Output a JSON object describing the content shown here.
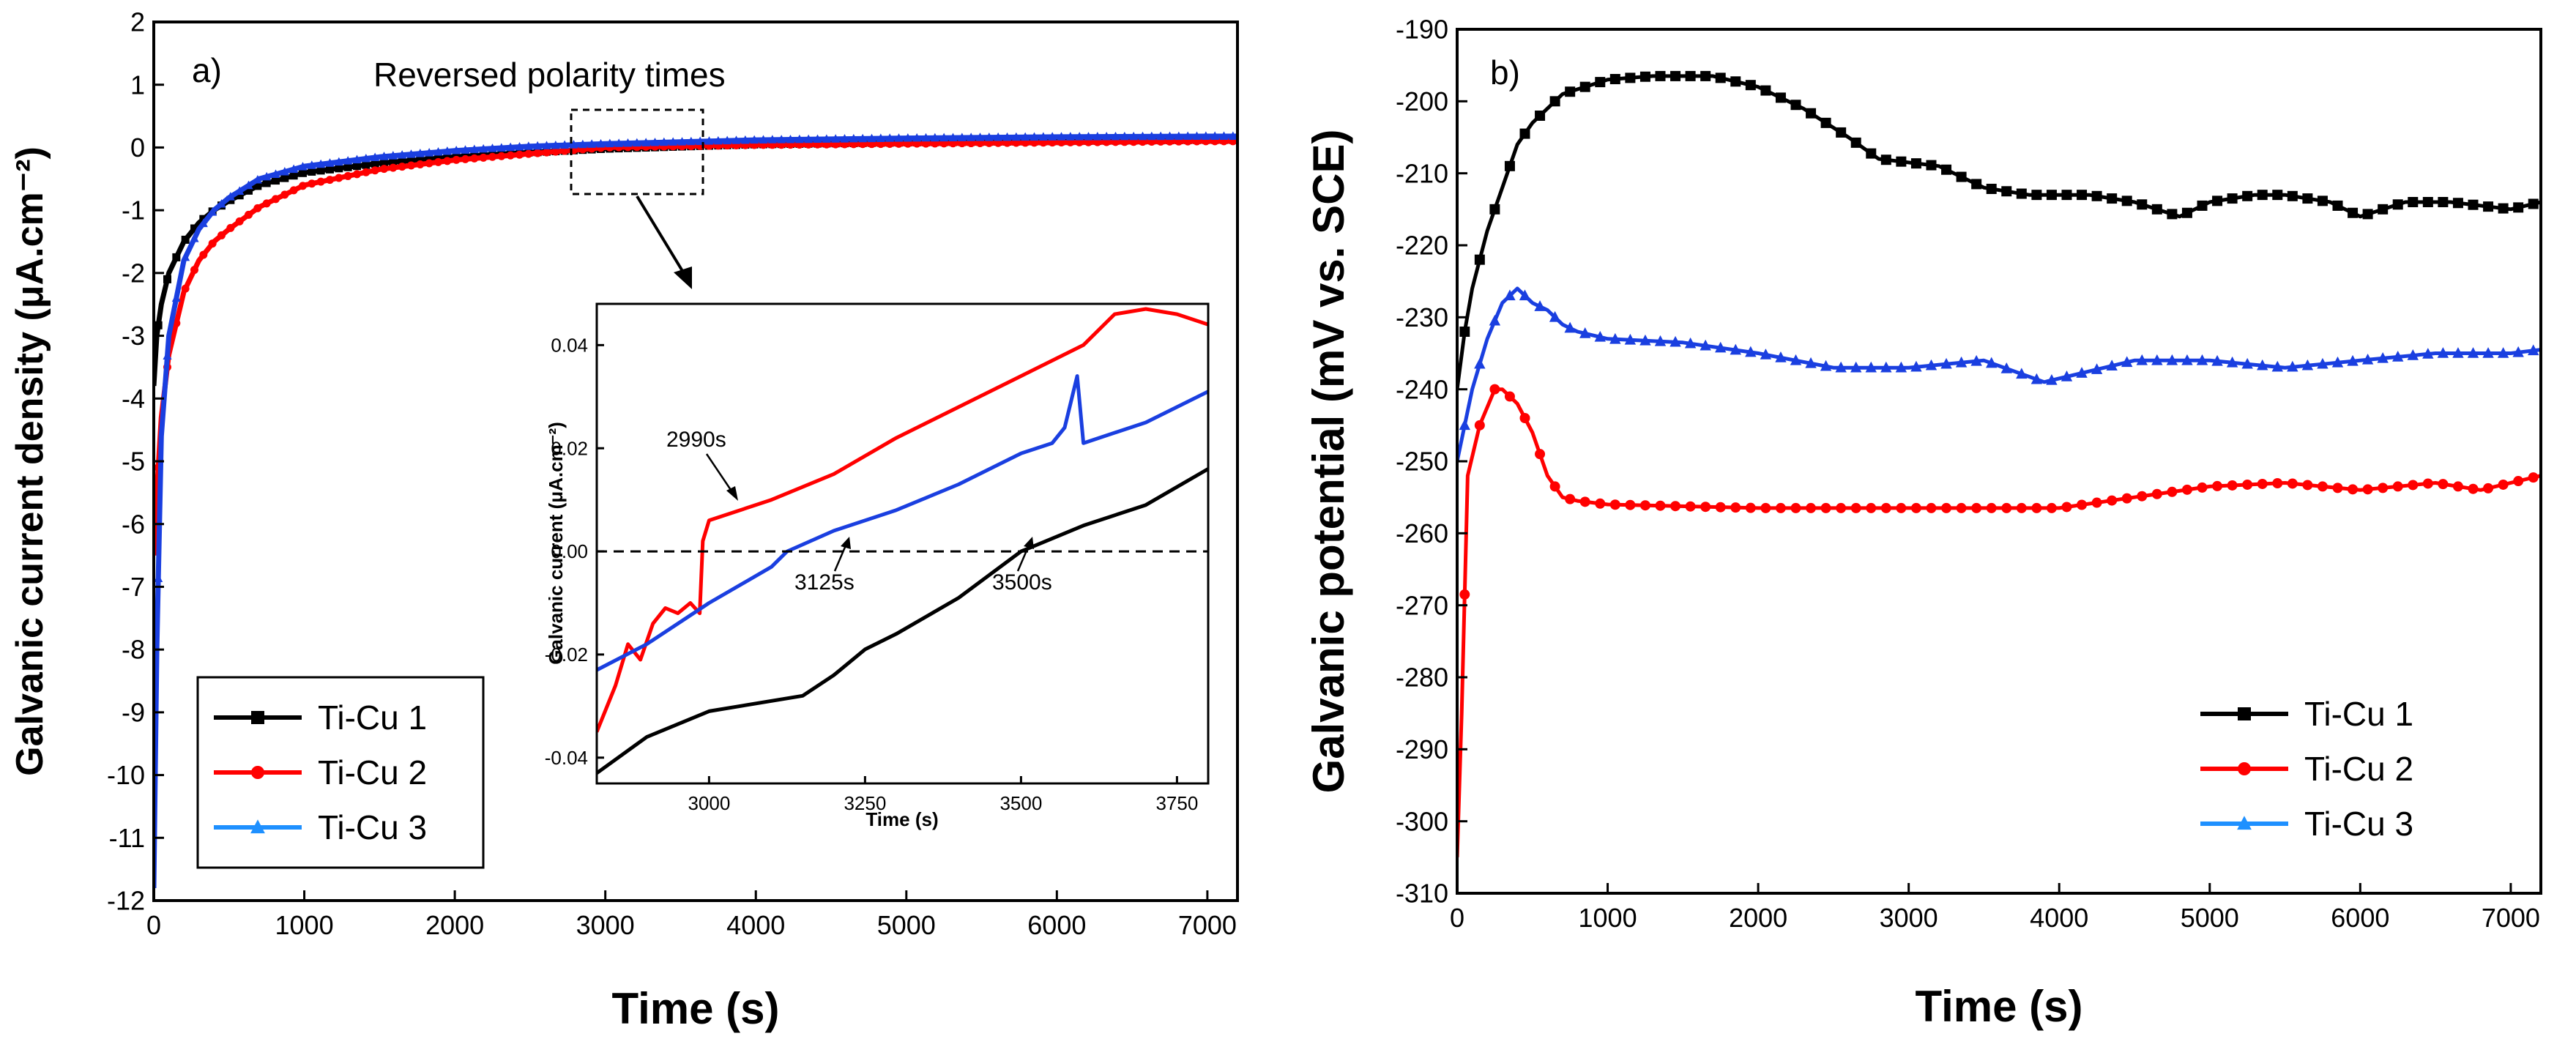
{
  "colors": {
    "ti_cu_1": "#000000",
    "ti_cu_2": "#ff0000",
    "ti_cu_3": "#1a3fe0",
    "ti_cu_3_legend": "#1e90ff",
    "axis": "#000000",
    "zero_line": "#000000"
  },
  "chart_data": [
    {
      "id": "a",
      "type": "line",
      "panel_label": "a)",
      "annotation": "Reversed polarity times",
      "xlabel": "Time (s)",
      "ylabel": "Galvanic current density (μA.cm⁻²)",
      "xlim": [
        0,
        7200
      ],
      "ylim": [
        -12,
        2
      ],
      "xticks": [
        "0",
        "1000",
        "2000",
        "3000",
        "4000",
        "5000",
        "6000",
        "7000"
      ],
      "yticks": [
        "2",
        "1",
        "0",
        "-1",
        "-2",
        "-3",
        "-4",
        "-5",
        "-6",
        "-7",
        "-8",
        "-9",
        "-10",
        "-11",
        "-12"
      ],
      "legend_position": "bottom-left",
      "legend": [
        "Ti-Cu 1",
        "Ti-Cu 2",
        "Ti-Cu 3"
      ],
      "series": [
        {
          "name": "Ti-Cu 1",
          "marker": "square",
          "x": [
            0,
            20,
            50,
            100,
            200,
            300,
            400,
            500,
            700,
            1000,
            1500,
            2000,
            2500,
            3000,
            4000,
            5000,
            6000,
            7000,
            7200
          ],
          "y": [
            -3.8,
            -3.0,
            -2.5,
            -2.0,
            -1.5,
            -1.2,
            -1.0,
            -0.85,
            -0.6,
            -0.4,
            -0.25,
            -0.15,
            -0.08,
            -0.02,
            0.05,
            0.08,
            0.1,
            0.12,
            0.12
          ]
        },
        {
          "name": "Ti-Cu 2",
          "marker": "circle",
          "x": [
            0,
            20,
            50,
            100,
            200,
            300,
            400,
            500,
            700,
            1000,
            1500,
            2000,
            2500,
            3000,
            4000,
            5000,
            6000,
            7000,
            7200
          ],
          "y": [
            -6.5,
            -5.5,
            -4.3,
            -3.3,
            -2.3,
            -1.8,
            -1.5,
            -1.3,
            -0.95,
            -0.6,
            -0.35,
            -0.2,
            -0.1,
            0.0,
            0.04,
            0.06,
            0.08,
            0.1,
            0.1
          ]
        },
        {
          "name": "Ti-Cu 3",
          "marker": "triangle",
          "x": [
            0,
            20,
            50,
            100,
            200,
            300,
            400,
            500,
            700,
            1000,
            1500,
            2000,
            2500,
            3000,
            4000,
            5000,
            6000,
            7000,
            7200
          ],
          "y": [
            -11.8,
            -8.0,
            -4.6,
            -3.0,
            -1.8,
            -1.3,
            -1.0,
            -0.8,
            -0.5,
            -0.3,
            -0.15,
            -0.05,
            0.02,
            0.06,
            0.12,
            0.15,
            0.17,
            0.18,
            0.18
          ]
        }
      ]
    },
    {
      "id": "a-inset",
      "type": "line",
      "xlabel": "Time (s)",
      "ylabel": "Galvanic current (μA.cm⁻²)",
      "xlim": [
        2820,
        3800
      ],
      "ylim": [
        -0.045,
        0.048
      ],
      "xticks": [
        "3000",
        "3250",
        "3500",
        "3750"
      ],
      "yticks": [
        "0.04",
        "0.02",
        "0.00",
        "-0.02",
        "-0.04"
      ],
      "annotations": [
        "2990s",
        "3125s",
        "3500s"
      ],
      "series": [
        {
          "name": "Ti-Cu 1",
          "x": [
            2820,
            2900,
            3000,
            3100,
            3150,
            3200,
            3250,
            3300,
            3400,
            3500,
            3600,
            3700,
            3800
          ],
          "y": [
            -0.043,
            -0.036,
            -0.031,
            -0.029,
            -0.028,
            -0.024,
            -0.019,
            -0.016,
            -0.009,
            0.0,
            0.005,
            0.009,
            0.016
          ]
        },
        {
          "name": "Ti-Cu 2",
          "x": [
            2820,
            2850,
            2870,
            2890,
            2910,
            2930,
            2950,
            2970,
            2985,
            2990,
            3000,
            3100,
            3200,
            3300,
            3400,
            3500,
            3600,
            3650,
            3700,
            3750,
            3800
          ],
          "y": [
            -0.035,
            -0.026,
            -0.018,
            -0.021,
            -0.014,
            -0.011,
            -0.012,
            -0.01,
            -0.012,
            0.002,
            0.006,
            0.01,
            0.015,
            0.022,
            0.028,
            0.034,
            0.04,
            0.046,
            0.047,
            0.046,
            0.044
          ]
        },
        {
          "name": "Ti-Cu 3",
          "x": [
            2820,
            2900,
            3000,
            3100,
            3125,
            3200,
            3300,
            3400,
            3500,
            3550,
            3570,
            3590,
            3600,
            3700,
            3800
          ],
          "y": [
            -0.023,
            -0.018,
            -0.01,
            -0.003,
            0.0,
            0.004,
            0.008,
            0.013,
            0.019,
            0.021,
            0.024,
            0.034,
            0.021,
            0.025,
            0.031
          ]
        }
      ]
    },
    {
      "id": "b",
      "type": "line",
      "panel_label": "b)",
      "xlabel": "Time (s)",
      "ylabel": "Galvanic potential (mV vs. SCE)",
      "xlim": [
        0,
        7200
      ],
      "ylim": [
        -310,
        -190
      ],
      "xticks": [
        "0",
        "1000",
        "2000",
        "3000",
        "4000",
        "5000",
        "6000",
        "7000"
      ],
      "yticks": [
        "-190",
        "-200",
        "-210",
        "-220",
        "-230",
        "-240",
        "-250",
        "-260",
        "-270",
        "-280",
        "-290",
        "-300",
        "-310"
      ],
      "legend_position": "bottom-right",
      "legend": [
        "Ti-Cu 1",
        "Ti-Cu 2",
        "Ti-Cu 3"
      ],
      "series": [
        {
          "name": "Ti-Cu 1",
          "marker": "square",
          "x": [
            0,
            50,
            100,
            200,
            300,
            400,
            500,
            700,
            1000,
            1300,
            1700,
            2000,
            2300,
            2600,
            2800,
            3200,
            3500,
            3800,
            4200,
            4500,
            4800,
            5000,
            5300,
            5500,
            5800,
            6000,
            6300,
            6600,
            7000,
            7200
          ],
          "y": [
            -240,
            -232,
            -226,
            -218,
            -212,
            -206,
            -203,
            -199,
            -197,
            -196.5,
            -196.5,
            -198,
            -201,
            -205,
            -208,
            -209,
            -212,
            -213,
            -213,
            -214,
            -216,
            -214,
            -213,
            -213,
            -214,
            -216,
            -214,
            -214,
            -215,
            -214
          ]
        },
        {
          "name": "Ti-Cu 2",
          "marker": "circle",
          "x": [
            0,
            30,
            70,
            150,
            250,
            300,
            400,
            500,
            600,
            700,
            800,
            1000,
            2000,
            3000,
            4000,
            5000,
            5500,
            6000,
            6500,
            6800,
            7200
          ],
          "y": [
            -305,
            -285,
            -252,
            -245,
            -240,
            -240,
            -242,
            -246,
            -252,
            -255,
            -255.5,
            -256,
            -256.5,
            -256.5,
            -256.5,
            -253.5,
            -253,
            -254,
            -253,
            -254,
            -252
          ]
        },
        {
          "name": "Ti-Cu 3",
          "marker": "triangle",
          "x": [
            0,
            50,
            100,
            200,
            300,
            400,
            450,
            500,
            600,
            700,
            800,
            1000,
            1500,
            2000,
            2500,
            3000,
            3500,
            3900,
            4500,
            5000,
            5500,
            6000,
            6500,
            7000,
            7200
          ],
          "y": [
            -250,
            -245,
            -240,
            -233,
            -228,
            -226,
            -227,
            -228,
            -229,
            -231,
            -232,
            -233,
            -233.5,
            -235,
            -237,
            -237,
            -236,
            -239,
            -236,
            -236,
            -237,
            -236,
            -235,
            -235,
            -234.5
          ]
        }
      ]
    }
  ]
}
